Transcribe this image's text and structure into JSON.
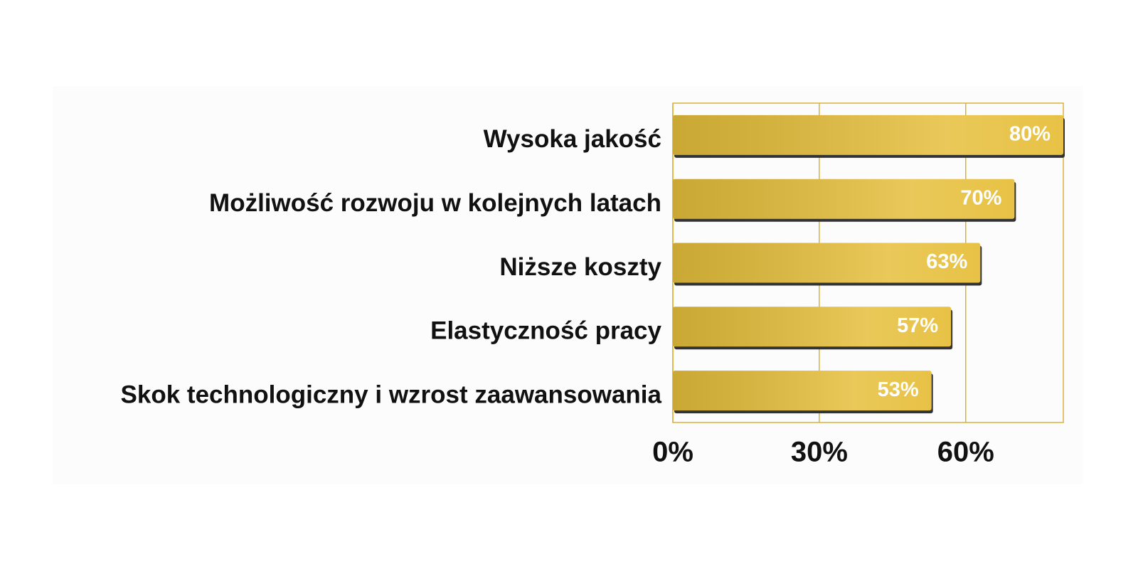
{
  "chart_data": {
    "type": "bar",
    "orientation": "horizontal",
    "categories": [
      "Wysoka jakość",
      "Możliwość rozwoju w kolejnych latach",
      "Niższe koszty",
      "Elastyczność pracy",
      "Skok technologiczny i wzrost zaawansowania"
    ],
    "values": [
      80,
      70,
      63,
      57,
      53
    ],
    "value_labels": [
      "80%",
      "70%",
      "63%",
      "57%",
      "53%"
    ],
    "color": "#e6bf3c",
    "xlim": [
      0,
      80
    ],
    "xticks": [
      {
        "value": 0,
        "label": "0%"
      },
      {
        "value": 30,
        "label": "30%"
      },
      {
        "value": 60,
        "label": "60%"
      }
    ],
    "grid": true
  }
}
